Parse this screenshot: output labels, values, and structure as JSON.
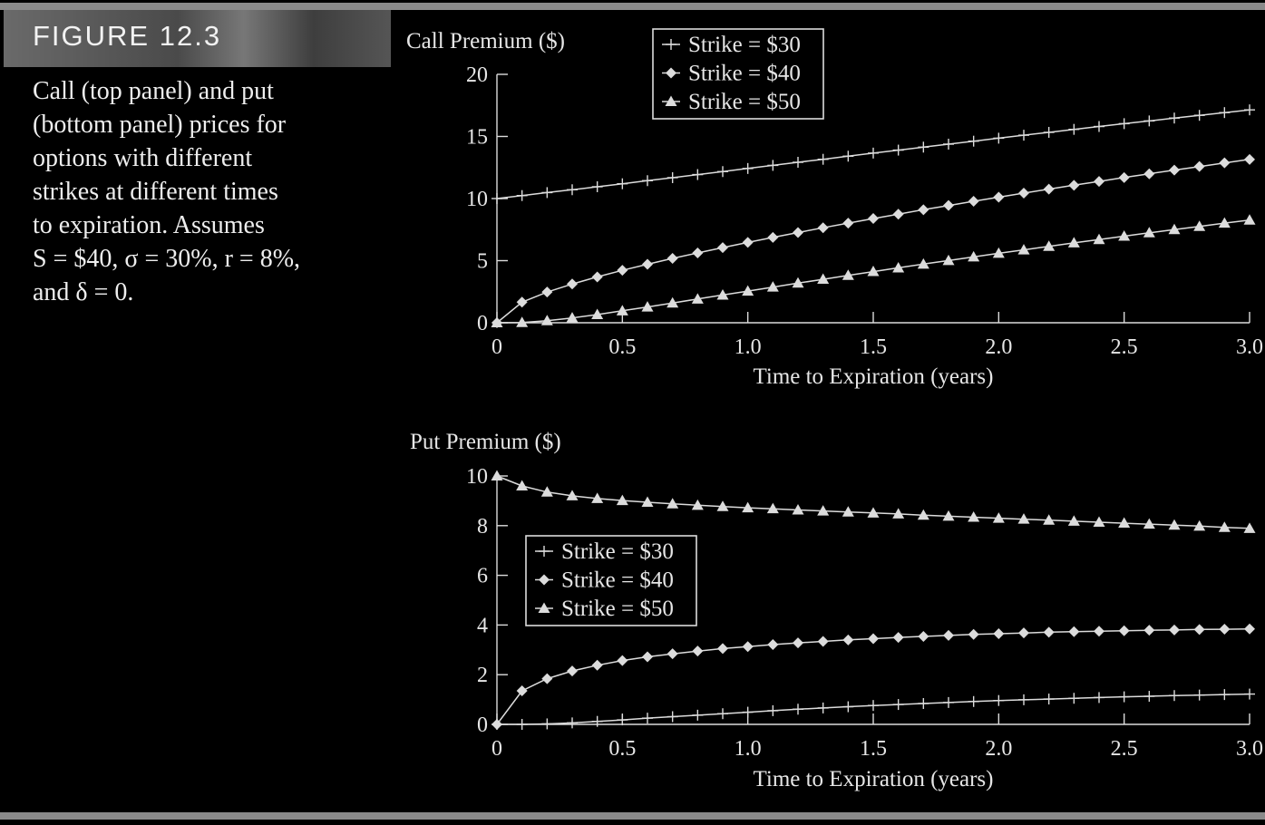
{
  "figure": {
    "label": "FIGURE 12.3",
    "caption_lines": [
      "Call (top panel) and put",
      "(bottom panel) prices for",
      "options with different",
      "strikes at different times",
      "to expiration. Assumes",
      "S = $40, σ = 30%, r = 8%,",
      "and δ = 0."
    ]
  },
  "chart_data": [
    {
      "type": "line",
      "ylabel": "Call Premium ($)",
      "xlabel": "Time to Expiration (years)",
      "xlim": [
        0,
        3.0
      ],
      "ylim": [
        0,
        20
      ],
      "xticks": [
        0,
        0.5,
        1.0,
        1.5,
        2.0,
        2.5,
        3.0
      ],
      "xtick_labels": [
        "0",
        "0.5",
        "1.0",
        "1.5",
        "2.0",
        "2.5",
        "3.0"
      ],
      "yticks": [
        0,
        5,
        10,
        15,
        20
      ],
      "ytick_labels": [
        "0",
        "5",
        "10",
        "15",
        "20"
      ],
      "legend_position": "top-left",
      "x": [
        0,
        0.1,
        0.2,
        0.3,
        0.4,
        0.5,
        0.6,
        0.7,
        0.8,
        0.9,
        1.0,
        1.1,
        1.2,
        1.3,
        1.4,
        1.5,
        1.6,
        1.7,
        1.8,
        1.9,
        2.0,
        2.1,
        2.2,
        2.3,
        2.4,
        2.5,
        2.6,
        2.7,
        2.8,
        2.9,
        3.0
      ],
      "series": [
        {
          "name": "Strike = $30",
          "marker": "plus",
          "values": [
            10.0,
            10.24,
            10.48,
            10.71,
            10.95,
            11.19,
            11.44,
            11.68,
            11.93,
            12.17,
            12.42,
            12.67,
            12.92,
            13.16,
            13.41,
            13.66,
            13.9,
            14.14,
            14.38,
            14.62,
            14.86,
            15.1,
            15.33,
            15.57,
            15.8,
            16.03,
            16.25,
            16.48,
            16.7,
            16.92,
            17.14
          ]
        },
        {
          "name": "Strike = $40",
          "marker": "diamond",
          "values": [
            0.0,
            1.66,
            2.47,
            3.12,
            3.69,
            4.22,
            4.71,
            5.18,
            5.62,
            6.05,
            6.47,
            6.87,
            7.26,
            7.65,
            8.02,
            8.39,
            8.74,
            9.1,
            9.44,
            9.78,
            10.11,
            10.44,
            10.76,
            11.07,
            11.38,
            11.69,
            11.99,
            12.29,
            12.58,
            12.87,
            13.15
          ]
        },
        {
          "name": "Strike = $50",
          "marker": "triangle",
          "values": [
            0.0,
            0.02,
            0.16,
            0.39,
            0.66,
            0.96,
            1.27,
            1.59,
            1.91,
            2.23,
            2.55,
            2.87,
            3.19,
            3.5,
            3.81,
            4.12,
            4.42,
            4.72,
            5.01,
            5.3,
            5.59,
            5.87,
            6.15,
            6.43,
            6.7,
            6.97,
            7.24,
            7.5,
            7.76,
            8.02,
            8.27
          ]
        }
      ]
    },
    {
      "type": "line",
      "ylabel": "Put Premium ($)",
      "xlabel": "Time to Expiration (years)",
      "xlim": [
        0,
        3.0
      ],
      "ylim": [
        0,
        10
      ],
      "xticks": [
        0,
        0.5,
        1.0,
        1.5,
        2.0,
        2.5,
        3.0
      ],
      "xtick_labels": [
        "0",
        "0.5",
        "1.0",
        "1.5",
        "2.0",
        "2.5",
        "3.0"
      ],
      "yticks": [
        0,
        2,
        4,
        6,
        8,
        10
      ],
      "ytick_labels": [
        "0",
        "2",
        "4",
        "6",
        "8",
        "10"
      ],
      "legend_position": "middle-left",
      "x": [
        0,
        0.1,
        0.2,
        0.3,
        0.4,
        0.5,
        0.6,
        0.7,
        0.8,
        0.9,
        1.0,
        1.1,
        1.2,
        1.3,
        1.4,
        1.5,
        1.6,
        1.7,
        1.8,
        1.9,
        2.0,
        2.1,
        2.2,
        2.3,
        2.4,
        2.5,
        2.6,
        2.7,
        2.8,
        2.9,
        3.0
      ],
      "series": [
        {
          "name": "Strike = $30",
          "marker": "plus",
          "values": [
            0.0,
            0.0,
            0.02,
            0.06,
            0.12,
            0.18,
            0.25,
            0.31,
            0.37,
            0.43,
            0.49,
            0.55,
            0.61,
            0.66,
            0.71,
            0.76,
            0.8,
            0.84,
            0.88,
            0.92,
            0.96,
            0.99,
            1.02,
            1.05,
            1.08,
            1.11,
            1.13,
            1.16,
            1.18,
            1.2,
            1.22
          ]
        },
        {
          "name": "Strike = $40",
          "marker": "diamond",
          "values": [
            0.0,
            1.35,
            1.84,
            2.15,
            2.38,
            2.57,
            2.72,
            2.84,
            2.95,
            3.05,
            3.13,
            3.21,
            3.28,
            3.34,
            3.4,
            3.45,
            3.5,
            3.54,
            3.58,
            3.62,
            3.65,
            3.68,
            3.71,
            3.73,
            3.75,
            3.77,
            3.79,
            3.8,
            3.82,
            3.83,
            3.84
          ]
        },
        {
          "name": "Strike = $50",
          "marker": "triangle",
          "values": [
            10.0,
            9.6,
            9.35,
            9.2,
            9.09,
            9.01,
            8.94,
            8.88,
            8.82,
            8.77,
            8.72,
            8.68,
            8.63,
            8.59,
            8.55,
            8.51,
            8.47,
            8.42,
            8.38,
            8.34,
            8.3,
            8.26,
            8.22,
            8.18,
            8.14,
            8.1,
            8.06,
            8.02,
            7.98,
            7.93,
            7.89
          ]
        }
      ]
    }
  ]
}
